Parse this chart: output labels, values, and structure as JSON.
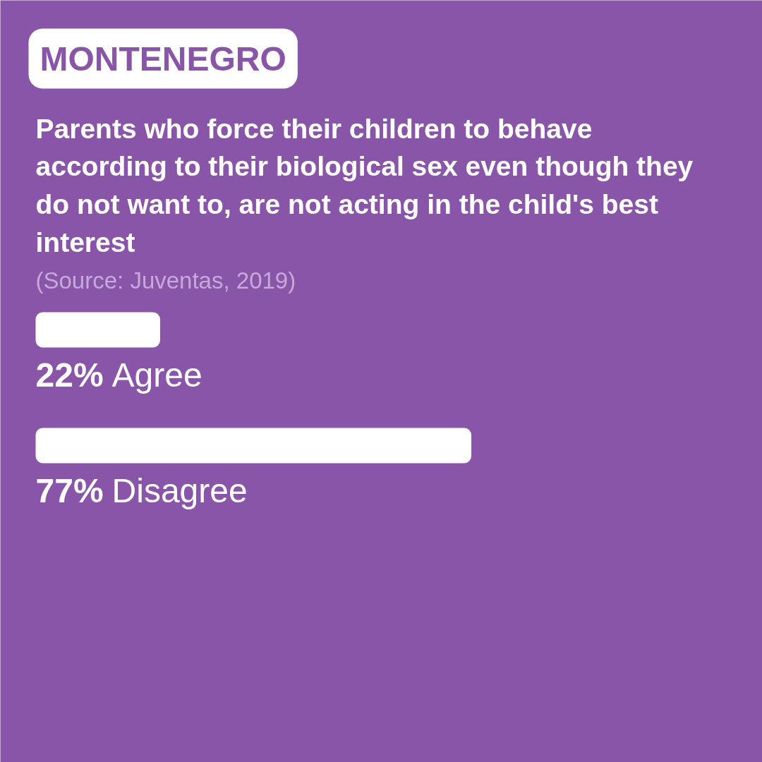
{
  "chart_data": {
    "type": "bar",
    "orientation": "horizontal",
    "title": "MONTENEGRO",
    "subtitle": "Parents who force their children to behave according to their biological sex even though they do not want to, are not acting in the child's best interest",
    "annotations": [
      "(Source: Juventas, 2019)"
    ],
    "categories": [
      "Agree",
      "Disagree"
    ],
    "values": [
      22,
      77
    ],
    "value_labels": [
      "22%",
      "77%"
    ],
    "color": "#ffffff",
    "tick_labels": false
  }
}
